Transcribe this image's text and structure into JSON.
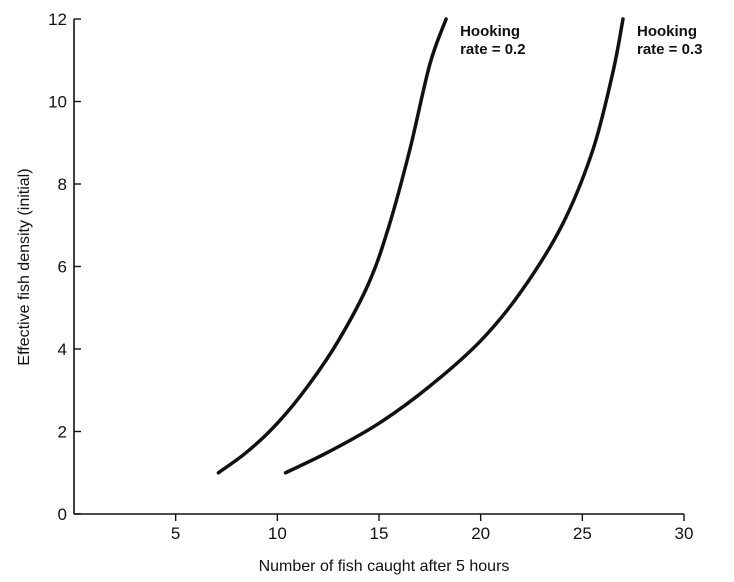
{
  "chart_data": {
    "type": "line",
    "title": "",
    "xlabel": "Number of fish caught after 5 hours",
    "ylabel": "Effective fish density (initial)",
    "xlim": [
      0,
      30
    ],
    "ylim": [
      0,
      12
    ],
    "x_ticks": [
      "5",
      "10",
      "15",
      "20",
      "25",
      "30"
    ],
    "y_ticks": [
      "0",
      "2",
      "4",
      "6",
      "8",
      "10",
      "12"
    ],
    "grid": false,
    "legend": "none",
    "line_color": "#111111",
    "series": [
      {
        "label_lines": [
          "Hooking",
          "rate = 0.2"
        ],
        "points": [
          [
            7.1,
            1.0
          ],
          [
            8.5,
            1.5
          ],
          [
            10.0,
            2.2
          ],
          [
            11.5,
            3.1
          ],
          [
            13.0,
            4.2
          ],
          [
            14.5,
            5.6
          ],
          [
            15.5,
            7.0
          ],
          [
            16.5,
            8.8
          ],
          [
            17.5,
            10.9
          ],
          [
            18.3,
            12.0
          ]
        ]
      },
      {
        "label_lines": [
          "Hooking",
          "rate = 0.3"
        ],
        "points": [
          [
            10.4,
            1.0
          ],
          [
            12.5,
            1.5
          ],
          [
            15.0,
            2.2
          ],
          [
            17.5,
            3.1
          ],
          [
            20.0,
            4.2
          ],
          [
            22.0,
            5.4
          ],
          [
            24.0,
            7.0
          ],
          [
            25.5,
            8.8
          ],
          [
            26.5,
            10.7
          ],
          [
            27.0,
            12.0
          ]
        ]
      }
    ]
  }
}
